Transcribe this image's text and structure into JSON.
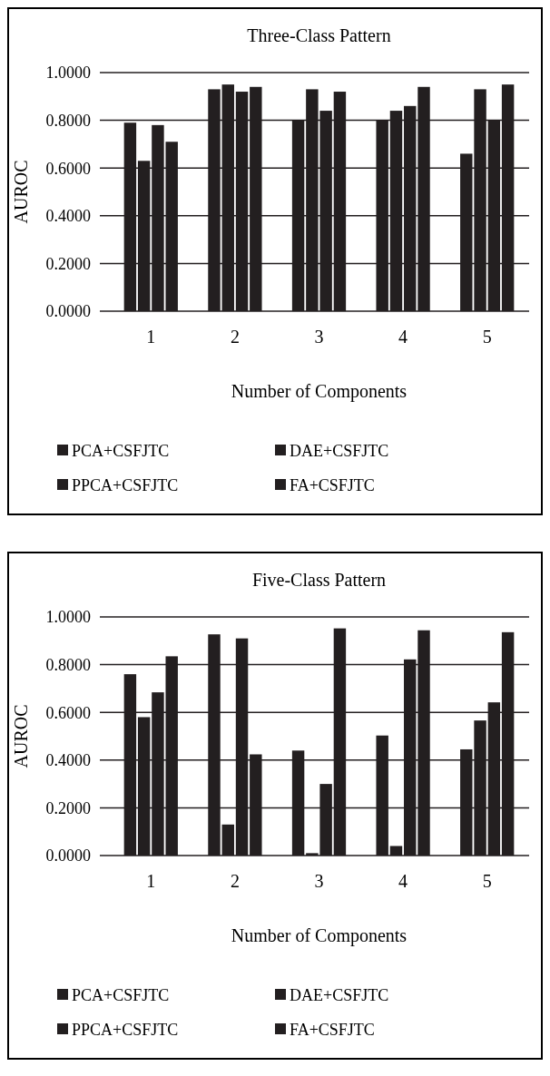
{
  "chart_data": [
    {
      "type": "bar",
      "title": "Three-Class Pattern",
      "xlabel": "Number of Components",
      "ylabel": "AUROC",
      "categories": [
        "1",
        "2",
        "3",
        "4",
        "5"
      ],
      "series": [
        {
          "name": "PCA+CSFJTC",
          "color": "#231f20",
          "values": [
            0.79,
            0.93,
            0.8,
            0.8,
            0.66
          ]
        },
        {
          "name": "DAE+CSFJTC",
          "color": "#231f20",
          "values": [
            0.63,
            0.95,
            0.93,
            0.84,
            0.93
          ]
        },
        {
          "name": "PPCA+CSFJTC",
          "color": "#231f20",
          "values": [
            0.78,
            0.92,
            0.84,
            0.86,
            0.8
          ]
        },
        {
          "name": "FA+CSFJTC",
          "color": "#231f20",
          "values": [
            0.71,
            0.94,
            0.92,
            0.94,
            0.95
          ]
        }
      ],
      "ylim": [
        0,
        1
      ],
      "yticks": [
        {
          "value": 0,
          "label": "0.0000"
        },
        {
          "value": 0.2,
          "label": "0.2000"
        },
        {
          "value": 0.4,
          "label": "0.4000"
        },
        {
          "value": 0.6,
          "label": "0.6000"
        },
        {
          "value": 0.8,
          "label": "0.8000"
        },
        {
          "value": 1,
          "label": "1.0000"
        }
      ],
      "grid": "y",
      "legend": "bottom"
    },
    {
      "type": "bar",
      "title": "Five-Class Pattern",
      "xlabel": "Number of Components",
      "ylabel": "AUROC",
      "categories": [
        "1",
        "2",
        "3",
        "4",
        "5"
      ],
      "series": [
        {
          "name": "PCA+CSFJTC",
          "color": "#231f20",
          "values": [
            0.76,
            0.927,
            0.44,
            0.503,
            0.445
          ]
        },
        {
          "name": "DAE+CSFJTC",
          "color": "#231f20",
          "values": [
            0.58,
            0.13,
            0.01,
            0.04,
            0.566
          ]
        },
        {
          "name": "PPCA+CSFJTC",
          "color": "#231f20",
          "values": [
            0.684,
            0.91,
            0.3,
            0.822,
            0.642
          ]
        },
        {
          "name": "FA+CSFJTC",
          "color": "#231f20",
          "values": [
            0.835,
            0.424,
            0.952,
            0.944,
            0.936
          ]
        }
      ],
      "ylim": [
        0,
        1
      ],
      "yticks": [
        {
          "value": 0,
          "label": "0.0000"
        },
        {
          "value": 0.2,
          "label": "0.2000"
        },
        {
          "value": 0.4,
          "label": "0.4000"
        },
        {
          "value": 0.6,
          "label": "0.6000"
        },
        {
          "value": 0.8,
          "label": "0.8000"
        },
        {
          "value": 1,
          "label": "1.0000"
        }
      ],
      "grid": "y",
      "legend": "bottom"
    }
  ]
}
